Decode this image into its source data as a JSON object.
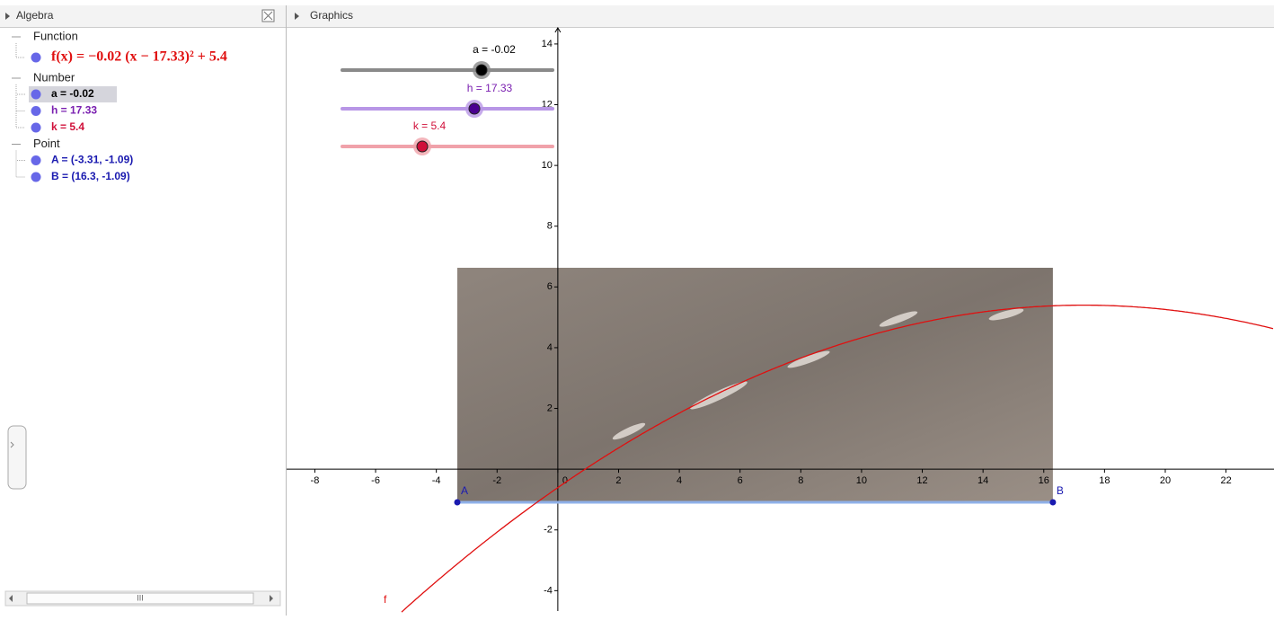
{
  "algebra": {
    "title": "Algebra",
    "groups": [
      {
        "label": "Function",
        "items": [
          {
            "text": "f(x) = −0.02 (x − 17.33)² + 5.4",
            "color": "#e01010"
          }
        ]
      },
      {
        "label": "Number",
        "items": [
          {
            "text": "a = -0.02",
            "color": "#000000"
          },
          {
            "text": "h = 17.33",
            "color": "#7a1fb0"
          },
          {
            "text": "k = 5.4",
            "color": "#d0103a"
          }
        ]
      },
      {
        "label": "Point",
        "items": [
          {
            "text": "A = (-3.31, -1.09)",
            "color": "#1a1ab0"
          },
          {
            "text": "B = (16.3, -1.09)",
            "color": "#1a1ab0"
          }
        ]
      }
    ],
    "scroll_label": "III"
  },
  "graphics": {
    "title": "Graphics",
    "xlim": [
      -8.93,
      23.58
    ],
    "ylim": [
      -4.67,
      14.53
    ],
    "xticks": [
      -8,
      -6,
      -4,
      -2,
      0,
      2,
      4,
      6,
      8,
      10,
      12,
      14,
      16,
      18,
      20,
      22
    ],
    "yticks": [
      -4,
      -2,
      2,
      4,
      6,
      8,
      10,
      12,
      14
    ],
    "sliders": [
      {
        "label": "a = -0.02",
        "color": "#8a8a8a",
        "thumb": "#000000",
        "label_color": "#000000"
      },
      {
        "label": "h = 17.33",
        "color": "#b896e6",
        "thumb": "#4a0090",
        "label_color": "#7a1fb0"
      },
      {
        "label": "k = 5.4",
        "color": "#f0a2aa",
        "thumb": "#d0103a",
        "label_color": "#d0103a"
      }
    ],
    "points": [
      {
        "label": "A",
        "x": -3.31,
        "y": -1.09
      },
      {
        "label": "B",
        "x": 16.3,
        "y": -1.09
      }
    ],
    "function": {
      "label": "f",
      "a": -0.02,
      "h": 17.33,
      "k": 5.4,
      "color": "#e01010"
    }
  }
}
